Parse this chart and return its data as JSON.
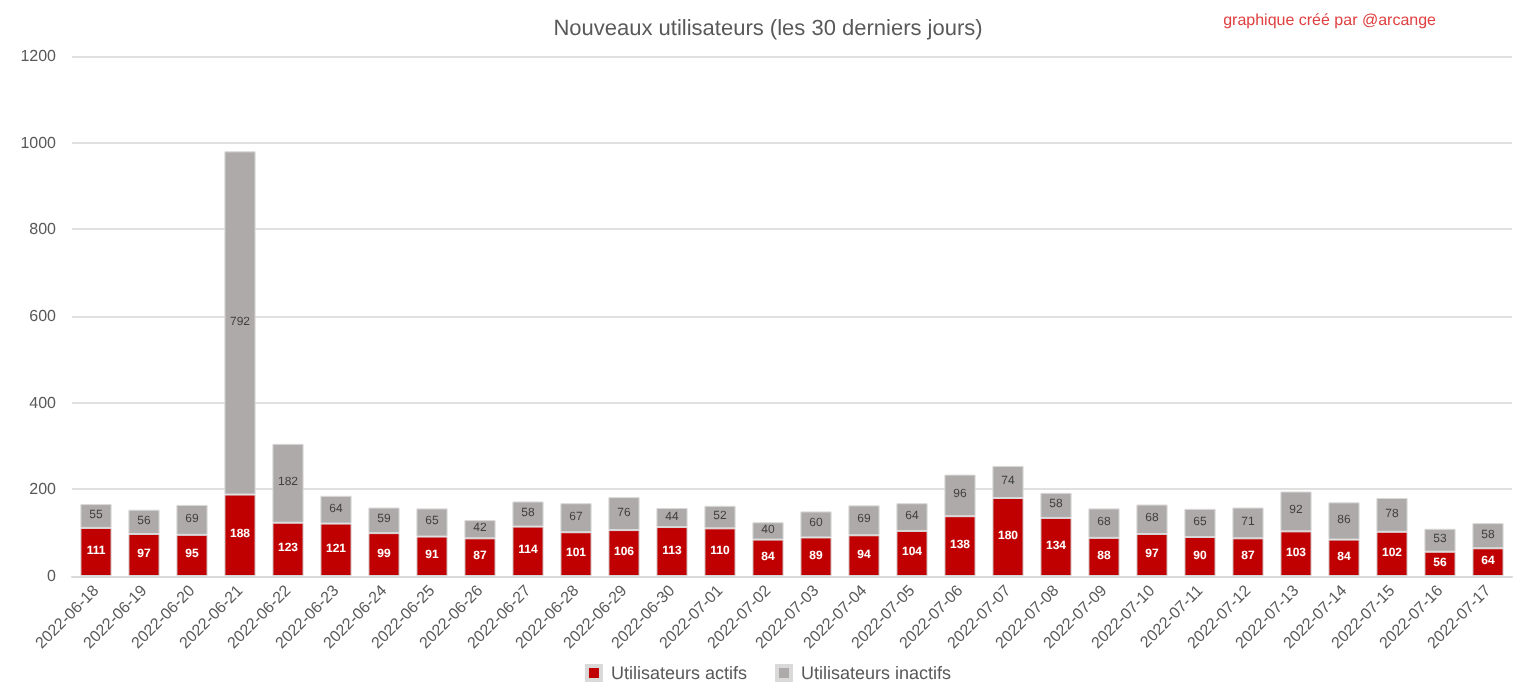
{
  "chart_data": {
    "type": "bar",
    "title": "Nouveaux utilisateurs (les 30 derniers jours)",
    "annotations": [
      "graphique créé par @arcange"
    ],
    "categories": [
      "2022-06-18",
      "2022-06-19",
      "2022-06-20",
      "2022-06-21",
      "2022-06-22",
      "2022-06-23",
      "2022-06-24",
      "2022-06-25",
      "2022-06-26",
      "2022-06-27",
      "2022-06-28",
      "2022-06-29",
      "2022-06-30",
      "2022-07-01",
      "2022-07-02",
      "2022-07-03",
      "2022-07-04",
      "2022-07-05",
      "2022-07-06",
      "2022-07-07",
      "2022-07-08",
      "2022-07-09",
      "2022-07-10",
      "2022-07-11",
      "2022-07-12",
      "2022-07-13",
      "2022-07-14",
      "2022-07-15",
      "2022-07-16",
      "2022-07-17"
    ],
    "series": [
      {
        "name": "Utilisateurs actifs",
        "color": "#c00000",
        "values": [
          111,
          97,
          95,
          188,
          123,
          121,
          99,
          91,
          87,
          114,
          101,
          106,
          113,
          110,
          84,
          89,
          94,
          104,
          138,
          180,
          134,
          88,
          97,
          90,
          87,
          103,
          84,
          102,
          56,
          64
        ]
      },
      {
        "name": "Utilisateurs inactifs",
        "color": "#aeaaaa",
        "values": [
          55,
          56,
          69,
          792,
          182,
          64,
          59,
          65,
          42,
          58,
          67,
          76,
          44,
          52,
          40,
          60,
          69,
          64,
          96,
          74,
          58,
          68,
          68,
          65,
          71,
          92,
          86,
          78,
          53,
          58
        ]
      }
    ],
    "stacked": true,
    "data_labels": true,
    "ylim": [
      0,
      1200
    ],
    "yticks": [
      0,
      200,
      400,
      600,
      800,
      1000,
      1200
    ],
    "grid": "y",
    "legend": "bottom"
  }
}
